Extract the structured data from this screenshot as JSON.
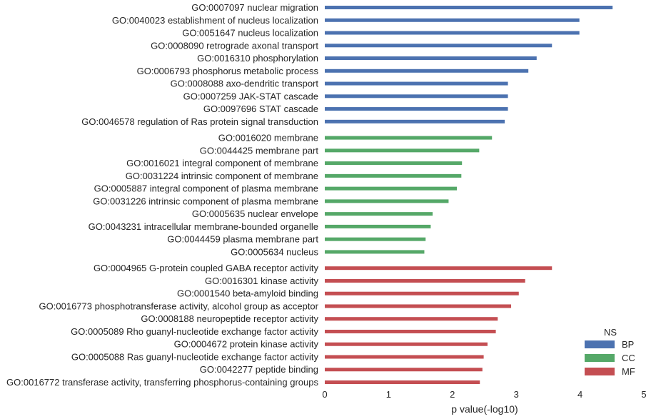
{
  "chart_data": {
    "type": "bar",
    "orientation": "horizontal",
    "xlabel": "p value(-log10)",
    "xlim": [
      0,
      5
    ],
    "xticks": [
      0,
      1,
      2,
      3,
      4,
      5
    ],
    "grid": false,
    "legend": {
      "title": "NS",
      "position": "bottom-right",
      "entries": [
        "BP",
        "CC",
        "MF"
      ]
    },
    "colors": {
      "BP": "#4c72b0",
      "CC": "#55a868",
      "MF": "#c44e52"
    },
    "bars": [
      {
        "label": "GO:0007097 nuclear migration",
        "value": 4.51,
        "ns": "BP"
      },
      {
        "label": "GO:0040023 establishment of nucleus localization",
        "value": 3.99,
        "ns": "BP"
      },
      {
        "label": "GO:0051647 nucleus localization",
        "value": 3.99,
        "ns": "BP"
      },
      {
        "label": "GO:0008090 retrograde axonal transport",
        "value": 3.56,
        "ns": "BP"
      },
      {
        "label": "GO:0016310 phosphorylation",
        "value": 3.32,
        "ns": "BP"
      },
      {
        "label": "GO:0006793 phosphorus metabolic process",
        "value": 3.19,
        "ns": "BP"
      },
      {
        "label": "GO:0008088 axo-dendritic transport",
        "value": 2.87,
        "ns": "BP"
      },
      {
        "label": "GO:0007259 JAK-STAT cascade",
        "value": 2.87,
        "ns": "BP"
      },
      {
        "label": "GO:0097696 STAT cascade",
        "value": 2.87,
        "ns": "BP"
      },
      {
        "label": "GO:0046578 regulation of Ras protein signal transduction",
        "value": 2.82,
        "ns": "BP"
      },
      {
        "label": "GO:0016020 membrane",
        "value": 2.62,
        "ns": "CC"
      },
      {
        "label": "GO:0044425 membrane part",
        "value": 2.42,
        "ns": "CC"
      },
      {
        "label": "GO:0016021 integral component of membrane",
        "value": 2.15,
        "ns": "CC"
      },
      {
        "label": "GO:0031224 intrinsic component of membrane",
        "value": 2.14,
        "ns": "CC"
      },
      {
        "label": "GO:0005887 integral component of plasma membrane",
        "value": 2.07,
        "ns": "CC"
      },
      {
        "label": "GO:0031226 intrinsic component of plasma membrane",
        "value": 1.94,
        "ns": "CC"
      },
      {
        "label": "GO:0005635 nuclear envelope",
        "value": 1.69,
        "ns": "CC"
      },
      {
        "label": "GO:0043231 intracellular membrane-bounded organelle",
        "value": 1.66,
        "ns": "CC"
      },
      {
        "label": "GO:0044459 plasma membrane part",
        "value": 1.58,
        "ns": "CC"
      },
      {
        "label": "GO:0005634 nucleus",
        "value": 1.56,
        "ns": "CC"
      },
      {
        "label": "GO:0004965 G-protein coupled GABA receptor activity",
        "value": 3.56,
        "ns": "MF"
      },
      {
        "label": "GO:0016301 kinase activity",
        "value": 3.14,
        "ns": "MF"
      },
      {
        "label": "GO:0001540 beta-amyloid binding",
        "value": 3.04,
        "ns": "MF"
      },
      {
        "label": "GO:0016773 phosphotransferase activity, alcohol group as acceptor",
        "value": 2.92,
        "ns": "MF"
      },
      {
        "label": "GO:0008188 neuropeptide receptor activity",
        "value": 2.71,
        "ns": "MF"
      },
      {
        "label": "GO:0005089 Rho guanyl-nucleotide exchange factor activity",
        "value": 2.68,
        "ns": "MF"
      },
      {
        "label": "GO:0004672 protein kinase activity",
        "value": 2.55,
        "ns": "MF"
      },
      {
        "label": "GO:0005088 Ras guanyl-nucleotide exchange factor activity",
        "value": 2.49,
        "ns": "MF"
      },
      {
        "label": "GO:0042277 peptide binding",
        "value": 2.47,
        "ns": "MF"
      },
      {
        "label": "GO:0016772 transferase activity, transferring phosphorus-containing groups",
        "value": 2.43,
        "ns": "MF"
      }
    ]
  }
}
